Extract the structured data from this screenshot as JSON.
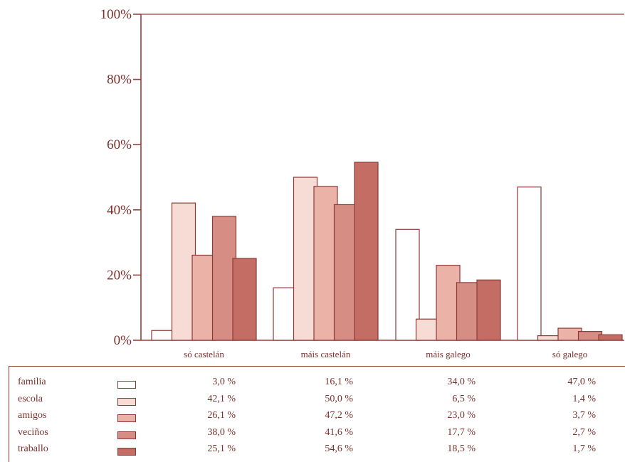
{
  "chart_data": {
    "type": "bar",
    "title": "",
    "xlabel": "",
    "ylabel": "",
    "ylim": [
      0,
      100
    ],
    "y_ticks": [
      "0%",
      "20%",
      "40%",
      "60%",
      "80%",
      "100%"
    ],
    "categories": [
      "só castelán",
      "máis castelán",
      "máis galego",
      "só galego"
    ],
    "series": [
      {
        "name": "familia",
        "color": "#ffffff",
        "values": [
          3.0,
          16.1,
          34.0,
          47.0
        ],
        "labels": [
          "3,0 %",
          "16,1 %",
          "34,0 %",
          "47,0 %"
        ]
      },
      {
        "name": "escola",
        "color": "#f6dcd5",
        "values": [
          42.1,
          50.0,
          6.5,
          1.4
        ],
        "labels": [
          "42,1 %",
          "50,0 %",
          "6,5 %",
          "1,4 %"
        ]
      },
      {
        "name": "amigos",
        "color": "#ebb3a8",
        "values": [
          26.1,
          47.2,
          23.0,
          3.7
        ],
        "labels": [
          "26,1 %",
          "47,2 %",
          "23,0 %",
          "3,7 %"
        ]
      },
      {
        "name": "veciños",
        "color": "#d68e84",
        "values": [
          38.0,
          41.6,
          17.7,
          2.7
        ],
        "labels": [
          "38,0 %",
          "41,6 %",
          "17,7 %",
          "2,7 %"
        ]
      },
      {
        "name": "traballo",
        "color": "#c36d64",
        "values": [
          25.1,
          54.6,
          18.5,
          1.7
        ],
        "labels": [
          "25,1 %",
          "54,6 %",
          "18,5 %",
          "1,7 %"
        ]
      }
    ],
    "grid": false,
    "legend": "bottom-table"
  }
}
